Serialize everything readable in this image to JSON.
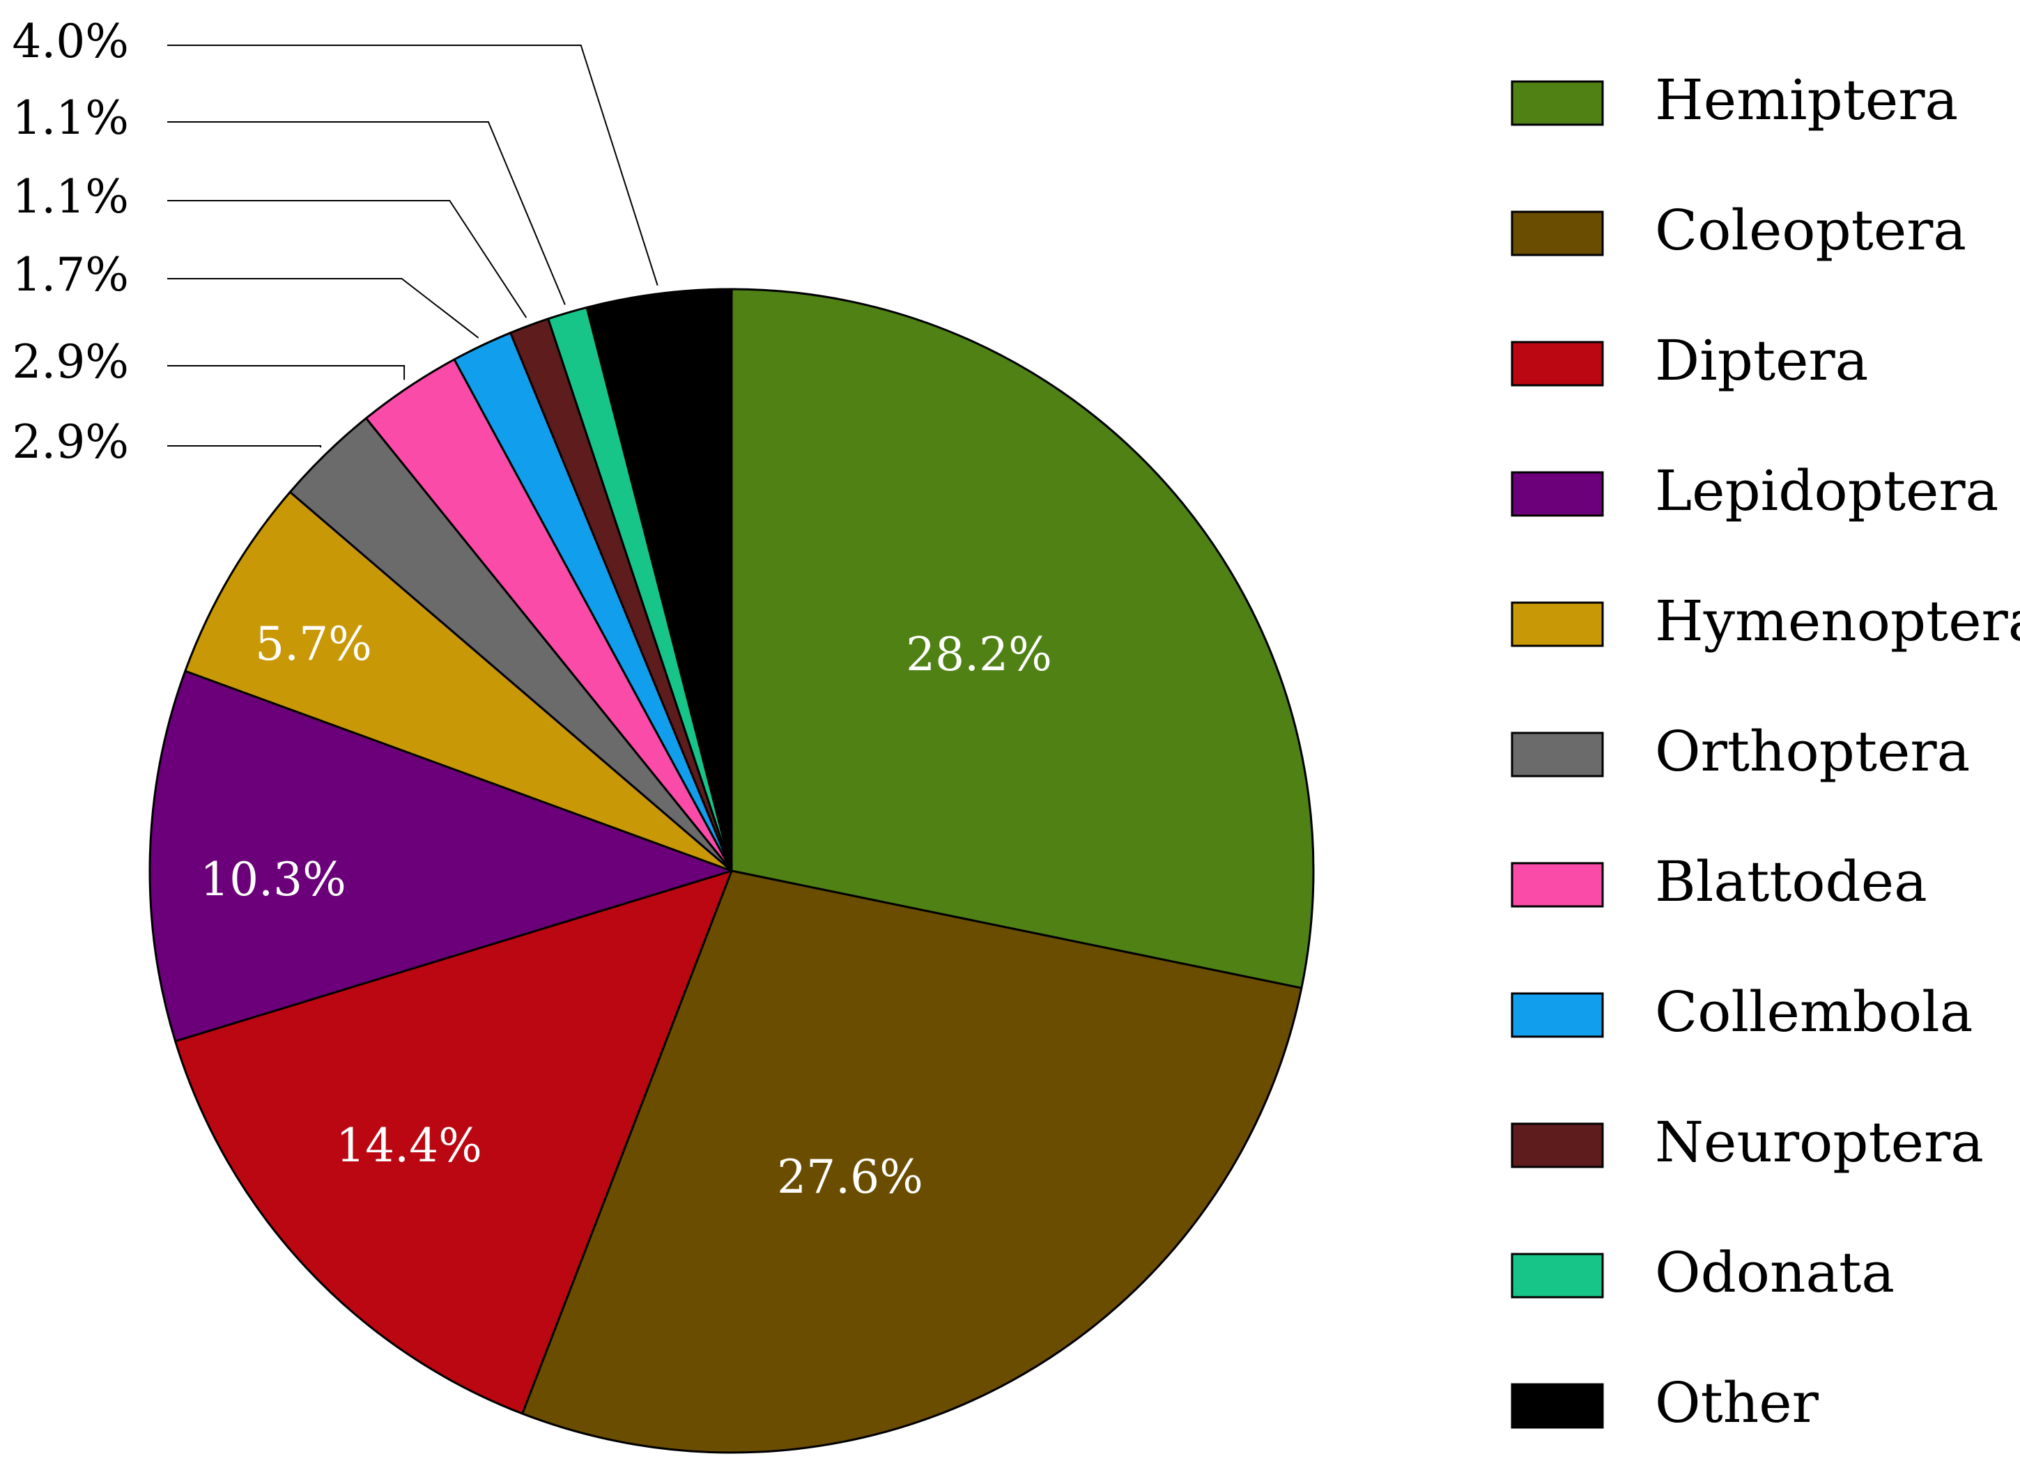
{
  "chart_data": {
    "type": "pie",
    "slices": [
      {
        "label": "Hemiptera",
        "value": 28.2,
        "value_label": "28.2%",
        "color": "#4f8114"
      },
      {
        "label": "Coleoptera",
        "value": 27.6,
        "value_label": "27.6%",
        "color": "#6b4d00"
      },
      {
        "label": "Diptera",
        "value": 14.4,
        "value_label": "14.4%",
        "color": "#bb0711"
      },
      {
        "label": "Lepidoptera",
        "value": 10.3,
        "value_label": "10.3%",
        "color": "#6b007a"
      },
      {
        "label": "Hymenoptera",
        "value": 5.7,
        "value_label": "5.7%",
        "color": "#c99806"
      },
      {
        "label": "Orthoptera",
        "value": 2.9,
        "value_label": "2.9%",
        "color": "#6b6b6b"
      },
      {
        "label": "Blattodea",
        "value": 2.9,
        "value_label": "2.9%",
        "color": "#fb4ba8"
      },
      {
        "label": "Collembola",
        "value": 1.7,
        "value_label": "1.7%",
        "color": "#119fed"
      },
      {
        "label": "Neuroptera",
        "value": 1.1,
        "value_label": "1.1%",
        "color": "#5e1c1c"
      },
      {
        "label": "Odonata",
        "value": 1.1,
        "value_label": "1.1%",
        "color": "#17c589"
      },
      {
        "label": "Other",
        "value": 4.0,
        "value_label": "4.0%",
        "color": "#000000"
      }
    ],
    "start_angle": "12 o'clock",
    "direction": "clockwise",
    "legend": "right"
  }
}
